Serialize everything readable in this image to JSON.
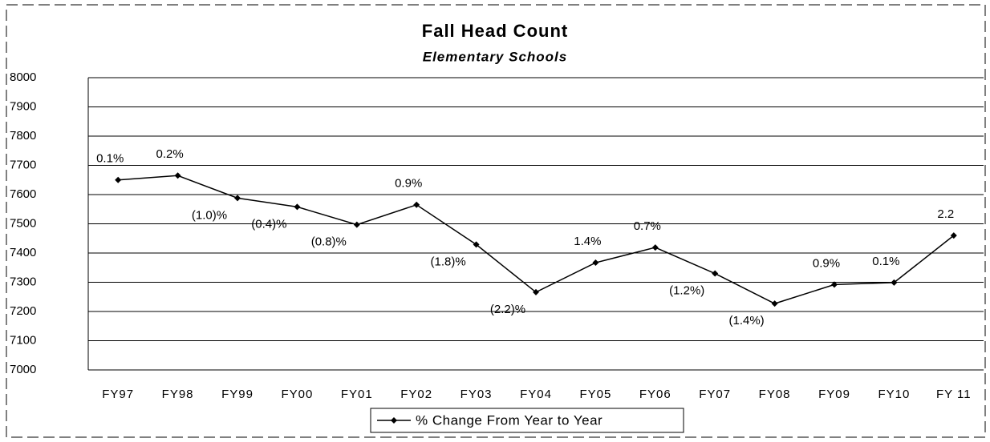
{
  "chart_data": {
    "type": "line",
    "title": "Fall Head Count",
    "subtitle": "Elementary Schools",
    "categories": [
      "FY97",
      "FY98",
      "FY99",
      "FY00",
      "FY01",
      "FY02",
      "FY03",
      "FY04",
      "FY05",
      "FY06",
      "FY07",
      "FY08",
      "FY09",
      "FY10",
      "FY 11"
    ],
    "series": [
      {
        "name": "% Change From Year to Year",
        "color": "#000000",
        "values": [
          7650,
          7665,
          7588,
          7558,
          7497,
          7565,
          7429,
          7266,
          7367,
          7419,
          7330,
          7227,
          7292,
          7299,
          7460
        ],
        "point_labels": [
          "0.1%",
          "0.2%",
          "(1.0)%",
          "(0.4)%",
          "(0.8)%",
          "0.9%",
          "(1.8)%",
          "(2.2)%",
          "1.4%",
          "0.7%",
          "(1.2%)",
          "(1.4%)",
          "0.9%",
          "0.1%",
          "2.2"
        ]
      }
    ],
    "ylim": [
      7000,
      8000
    ],
    "yticks": [
      7000,
      7100,
      7200,
      7300,
      7400,
      7500,
      7600,
      7700,
      7800,
      7900,
      8000
    ],
    "grid": true,
    "legend": "bottom"
  }
}
